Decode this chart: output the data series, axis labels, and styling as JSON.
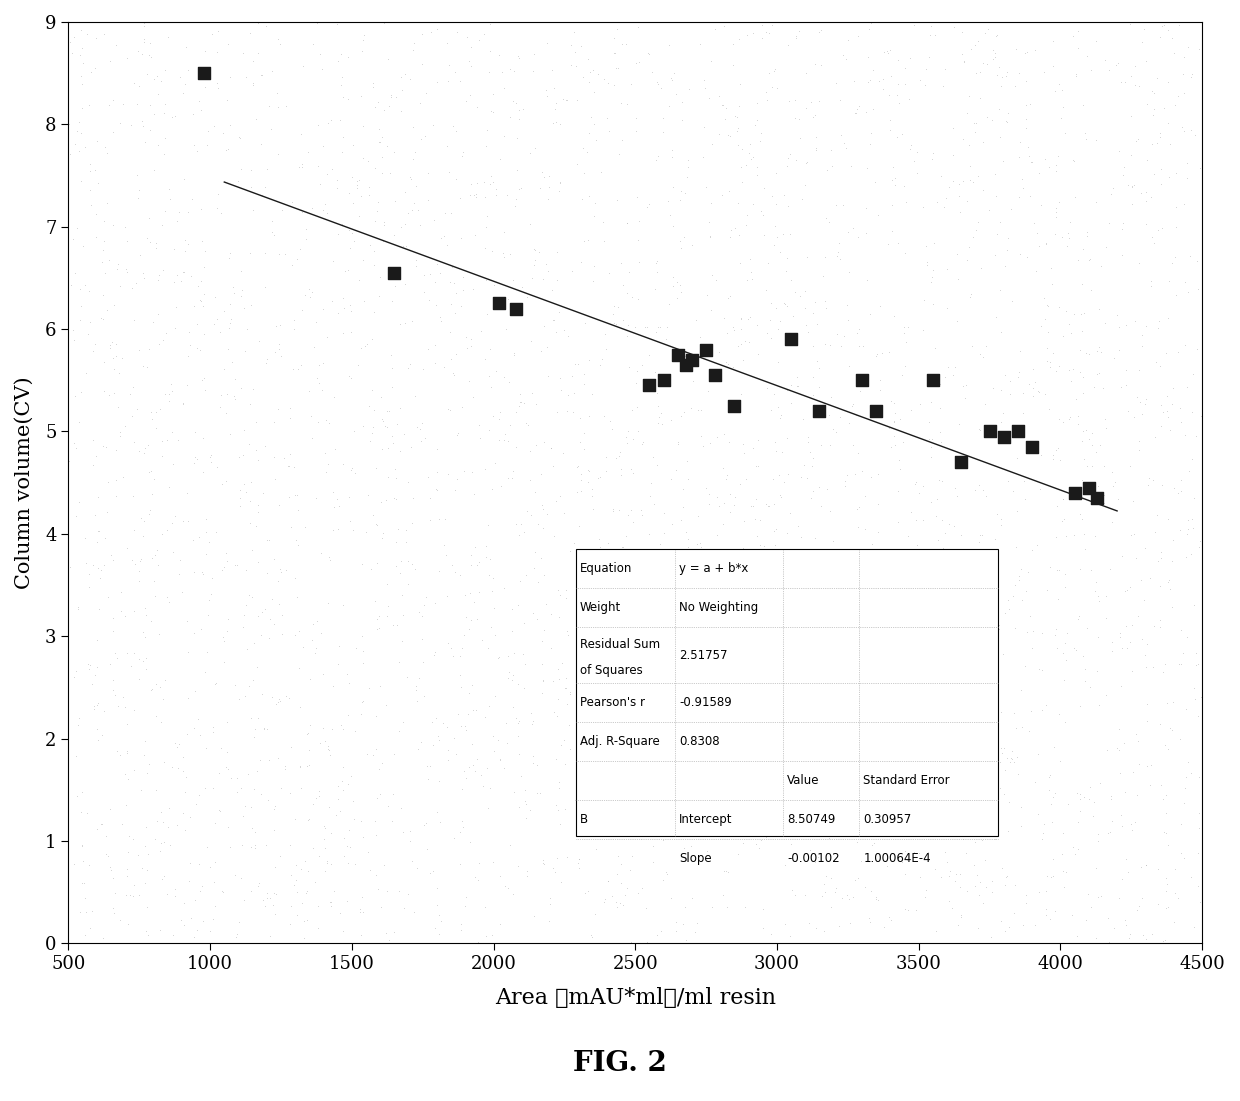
{
  "x_data": [
    980,
    1650,
    2020,
    2080,
    2550,
    2600,
    2650,
    2680,
    2700,
    2750,
    2780,
    2850,
    3050,
    3150,
    3300,
    3350,
    3550,
    3650,
    3750,
    3800,
    3850,
    3900,
    4050,
    4100,
    4130
  ],
  "y_data": [
    8.5,
    6.55,
    6.25,
    6.2,
    5.45,
    5.5,
    5.75,
    5.65,
    5.7,
    5.8,
    5.55,
    5.25,
    5.9,
    5.2,
    5.5,
    5.2,
    5.5,
    4.7,
    5.0,
    4.95,
    5.0,
    4.85,
    4.4,
    4.45,
    4.35
  ],
  "intercept": 8.50749,
  "slope": -0.00102,
  "x_line_start": 1050,
  "x_line_end": 4200,
  "xlim": [
    500,
    4500
  ],
  "ylim": [
    0,
    9
  ],
  "xticks": [
    500,
    1000,
    1500,
    2000,
    2500,
    3000,
    3500,
    4000,
    4500
  ],
  "yticks": [
    0,
    1,
    2,
    3,
    4,
    5,
    6,
    7,
    8,
    9
  ],
  "xlabel": "Area （mAU*ml）/ml resin",
  "ylabel": "Column volume(CV)",
  "marker_color": "#1a1a1a",
  "line_color": "#1a1a1a",
  "background_color": "#ffffff",
  "dot_pattern_color": "#bbbbbb",
  "equation": "y = a + b*x",
  "weight": "No Weighting",
  "residual_sum": "2.51757",
  "pearsons_r": "-0.91589",
  "adj_r_square": "0.8308",
  "intercept_value": "8.50749",
  "intercept_se": "0.30957",
  "slope_value": "-0.00102",
  "slope_se": "1.00064E-4",
  "fig_label": "FIG. 2",
  "marker_size": 70
}
